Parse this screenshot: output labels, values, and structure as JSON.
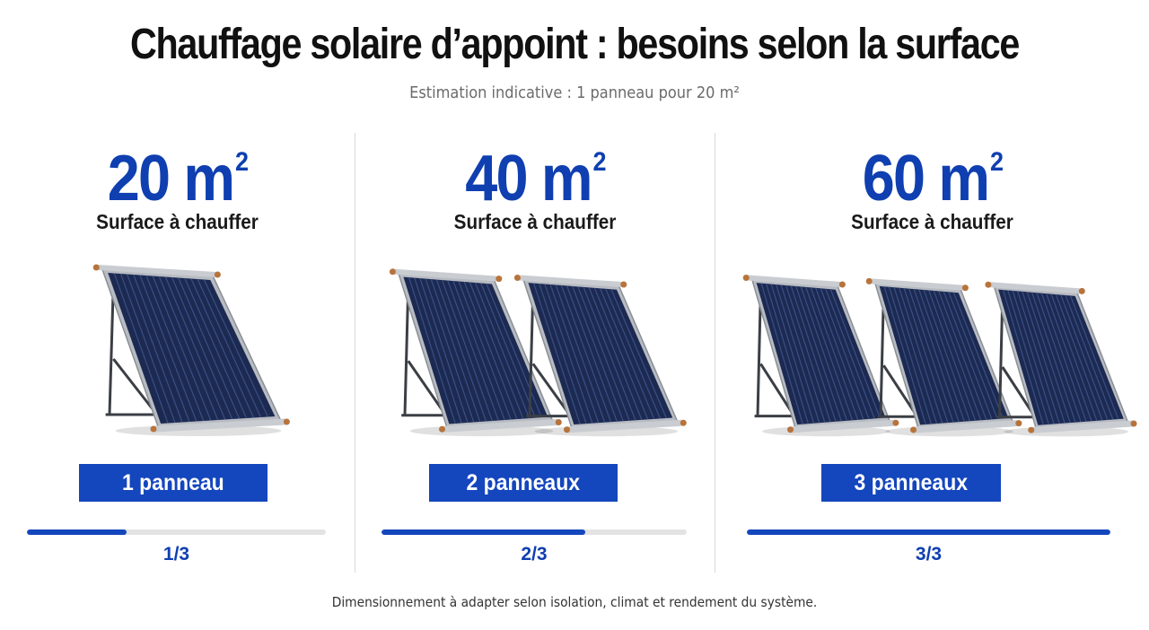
{
  "header": {
    "title": "Chauffage solaire d’appoint : besoins selon la surface",
    "subtitle": "Estimation indicative : 1 panneau pour 20 m²"
  },
  "columns": [
    {
      "area_value": "20 m",
      "area_exponent": "2",
      "area_label": "Surface à chauffer",
      "panel_count": 1,
      "badge_label": "1 panneau",
      "progress": 0.333,
      "ratio_label": "1/3"
    },
    {
      "area_value": "40 m",
      "area_exponent": "2",
      "area_label": "Surface à chauffer",
      "panel_count": 2,
      "badge_label": "2 panneaux",
      "progress": 0.667,
      "ratio_label": "2/3"
    },
    {
      "area_value": "60 m",
      "area_exponent": "2",
      "area_label": "Surface à chauffer",
      "panel_count": 3,
      "badge_label": "3 panneaux",
      "progress": 1.0,
      "ratio_label": "3/3"
    }
  ],
  "footer": {
    "note": "Dimensionnement à adapter selon isolation, climat et rendement du système."
  },
  "colors": {
    "accent": "#1446bd",
    "area_text": "#0f3fb0",
    "track": "#e3e3e3",
    "panel_glass": "#1c2a52",
    "frame": "#b8bcc2",
    "copper": "#b8733a"
  },
  "icons": {
    "panel": "solar-thermal-panel-icon"
  }
}
